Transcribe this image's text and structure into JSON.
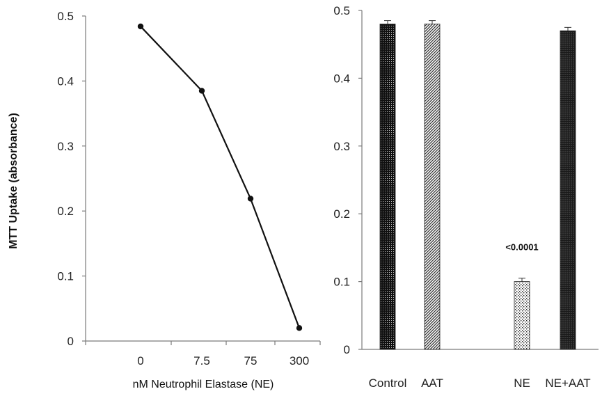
{
  "chart_data": [
    {
      "type": "line",
      "xlabel": "nM Neutrophil Elastase (NE)",
      "ylabel": "MTT Uptake (absorbance)",
      "categories": [
        "0",
        "7.5",
        "75",
        "300"
      ],
      "values": [
        0.484,
        0.385,
        0.219,
        0.02
      ],
      "ylim": [
        0,
        0.5
      ],
      "yticks": [
        "0",
        "0.1",
        "0.2",
        "0.3",
        "0.4",
        "0.5"
      ],
      "series_color": "#111111",
      "grid": false
    },
    {
      "type": "bar",
      "categories": [
        "Control",
        "AAT",
        "NE",
        "NE+AAT"
      ],
      "values": [
        0.48,
        0.48,
        0.1,
        0.47
      ],
      "errors": [
        0.005,
        0.005,
        0.005,
        0.005
      ],
      "ylim": [
        0,
        0.5
      ],
      "yticks": [
        "0",
        "0.1",
        "0.2",
        "0.3",
        "0.4",
        "0.5"
      ],
      "annotation": {
        "category": "NE",
        "text": "<0.0001"
      },
      "patterns": [
        "dense-dots",
        "diagonal-hatch",
        "sparse-dots",
        "dense-crosshatch"
      ],
      "bar_color": "#111111",
      "grid": false
    }
  ]
}
